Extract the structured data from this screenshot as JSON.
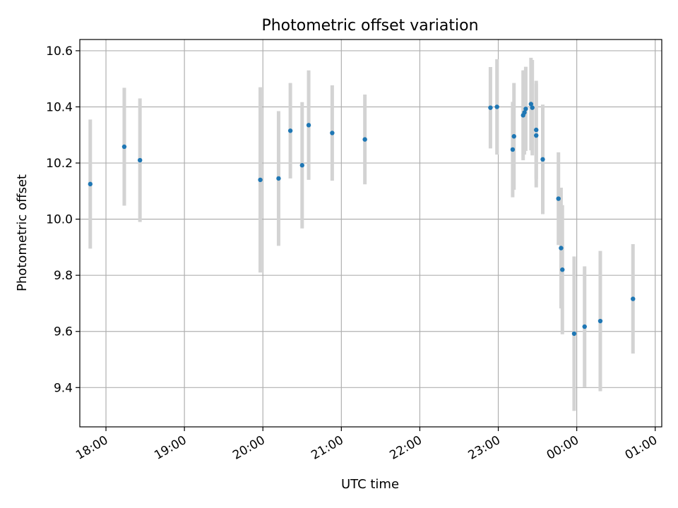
{
  "chart_data": {
    "type": "scatter",
    "title": "Photometric offset variation",
    "xlabel": "UTC time",
    "ylabel": "Photometric offset",
    "xlim": [
      "17:40",
      "01:05"
    ],
    "ylim": [
      9.26,
      10.64
    ],
    "x_ticks": [
      "18:00",
      "19:00",
      "20:00",
      "21:00",
      "22:00",
      "23:00",
      "00:00",
      "01:00"
    ],
    "y_ticks": [
      "9.4",
      "9.6",
      "9.8",
      "10.0",
      "10.2",
      "10.4",
      "10.6"
    ],
    "grid": true,
    "colors": {
      "point": "#1f77b4",
      "errorbar": "#d3d3d3",
      "grid": "#b0b0b0"
    },
    "series": [
      {
        "points": [
          {
            "x": "17:48",
            "y": 10.125,
            "yerr": 0.23
          },
          {
            "x": "18:14",
            "y": 10.258,
            "yerr": 0.21
          },
          {
            "x": "18:26",
            "y": 10.21,
            "yerr": 0.22
          },
          {
            "x": "19:58",
            "y": 10.14,
            "yerr": 0.33
          },
          {
            "x": "20:12",
            "y": 10.145,
            "yerr": 0.24
          },
          {
            "x": "20:21",
            "y": 10.315,
            "yerr": 0.17
          },
          {
            "x": "20:30",
            "y": 10.192,
            "yerr": 0.225
          },
          {
            "x": "20:35",
            "y": 10.335,
            "yerr": 0.195
          },
          {
            "x": "20:53",
            "y": 10.307,
            "yerr": 0.17
          },
          {
            "x": "21:18",
            "y": 10.284,
            "yerr": 0.16
          },
          {
            "x": "22:54",
            "y": 10.397,
            "yerr": 0.145
          },
          {
            "x": "22:59",
            "y": 10.4,
            "yerr": 0.17
          },
          {
            "x": "23:11",
            "y": 10.248,
            "yerr": 0.17
          },
          {
            "x": "23:12",
            "y": 10.295,
            "yerr": 0.19
          },
          {
            "x": "23:19",
            "y": 10.37,
            "yerr": 0.16
          },
          {
            "x": "23:20",
            "y": 10.38,
            "yerr": 0.15
          },
          {
            "x": "23:21",
            "y": 10.393,
            "yerr": 0.15
          },
          {
            "x": "23:25",
            "y": 10.41,
            "yerr": 0.165
          },
          {
            "x": "23:26",
            "y": 10.397,
            "yerr": 0.17
          },
          {
            "x": "23:29",
            "y": 10.318,
            "yerr": 0.175
          },
          {
            "x": "23:29",
            "y": 10.298,
            "yerr": 0.185
          },
          {
            "x": "23:34",
            "y": 10.213,
            "yerr": 0.195
          },
          {
            "x": "23:46",
            "y": 10.073,
            "yerr": 0.165
          },
          {
            "x": "23:48",
            "y": 9.897,
            "yerr": 0.215
          },
          {
            "x": "23:49",
            "y": 9.82,
            "yerr": 0.23
          },
          {
            "x": "23:58",
            "y": 9.592,
            "yerr": 0.275
          },
          {
            "x": "00:06",
            "y": 9.617,
            "yerr": 0.215
          },
          {
            "x": "00:18",
            "y": 9.637,
            "yerr": 0.25
          },
          {
            "x": "00:43",
            "y": 9.716,
            "yerr": 0.195
          }
        ]
      }
    ]
  }
}
